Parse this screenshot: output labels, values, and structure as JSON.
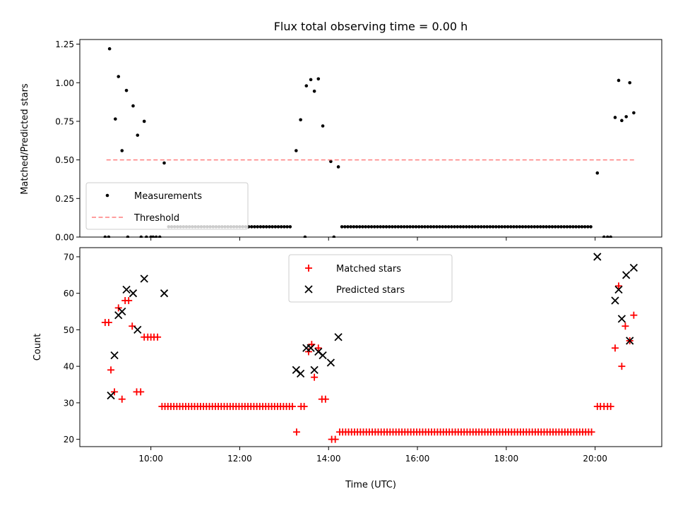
{
  "chart_data": [
    {
      "type": "scatter",
      "title": "Flux total observing time = 0.00 h",
      "xlabel": "",
      "ylabel": "Matched/Predicted stars",
      "xlim": [
        8.4,
        21.5
      ],
      "ylim": [
        0.0,
        1.28
      ],
      "yticks": [
        0.0,
        0.25,
        0.5,
        0.75,
        1.0,
        1.25
      ],
      "ytick_labels": [
        "0.00",
        "0.25",
        "0.50",
        "0.75",
        "1.00",
        "1.25"
      ],
      "xticks": [
        10,
        12,
        14,
        16,
        18,
        20
      ],
      "xtick_labels": [],
      "legend": {
        "location": "lower-left",
        "entries": [
          "Measurements",
          "Threshold"
        ]
      },
      "series": [
        {
          "name": "Measurements",
          "marker": "dot",
          "color": "#000000",
          "points": [
            [
              9.07,
              1.22
            ],
            [
              9.2,
              0.765
            ],
            [
              9.27,
              1.04
            ],
            [
              9.35,
              0.56
            ],
            [
              9.45,
              0.95
            ],
            [
              9.6,
              0.85
            ],
            [
              9.7,
              0.66
            ],
            [
              9.85,
              0.75
            ],
            [
              10.3,
              0.48
            ],
            [
              13.27,
              0.56
            ],
            [
              13.37,
              0.76
            ],
            [
              13.5,
              0.98
            ],
            [
              13.6,
              1.02
            ],
            [
              13.68,
              0.945
            ],
            [
              13.77,
              1.025
            ],
            [
              13.87,
              0.72
            ],
            [
              14.05,
              0.49
            ],
            [
              14.22,
              0.455
            ],
            [
              20.05,
              0.415
            ],
            [
              20.45,
              0.775
            ],
            [
              20.53,
              1.015
            ],
            [
              20.6,
              0.755
            ],
            [
              20.7,
              0.78
            ],
            [
              20.78,
              1.0
            ],
            [
              20.87,
              0.805
            ],
            [
              8.97,
              0.0
            ],
            [
              9.05,
              0.0
            ],
            [
              9.48,
              0.0
            ],
            [
              9.78,
              0.0
            ],
            [
              9.9,
              0.0
            ],
            [
              10.0,
              0.0
            ],
            [
              10.05,
              0.0
            ],
            [
              10.12,
              0.0
            ],
            [
              10.2,
              0.0
            ],
            [
              13.47,
              0.0
            ],
            [
              14.12,
              0.0
            ],
            [
              20.2,
              0.0
            ],
            [
              20.28,
              0.0
            ],
            [
              20.35,
              0.0
            ]
          ],
          "zero_run": [
            [
              10.4,
              13.2,
              0.0667
            ],
            [
              14.3,
              19.95,
              0.0667
            ]
          ]
        },
        {
          "name": "Threshold",
          "type": "line",
          "style": "dashed",
          "color": "#ff7f7f",
          "x": [
            9.0,
            20.9
          ],
          "y": [
            0.5,
            0.5
          ]
        }
      ]
    },
    {
      "type": "scatter",
      "title": "",
      "xlabel": "Time (UTC)",
      "ylabel": "Count",
      "xlim": [
        8.4,
        21.5
      ],
      "ylim": [
        18,
        72.5
      ],
      "yticks": [
        20,
        30,
        40,
        50,
        60,
        70
      ],
      "ytick_labels": [
        "20",
        "30",
        "40",
        "50",
        "60",
        "70"
      ],
      "xticks": [
        10,
        12,
        14,
        16,
        18,
        20
      ],
      "xtick_labels": [
        "10:00",
        "12:00",
        "14:00",
        "16:00",
        "18:00",
        "20:00"
      ],
      "legend": {
        "location": "top-center",
        "entries": [
          "Matched stars",
          "Predicted stars"
        ]
      },
      "series": [
        {
          "name": "Matched stars",
          "marker": "plus",
          "color": "#ff0000",
          "points": [
            [
              8.97,
              52
            ],
            [
              9.05,
              52
            ],
            [
              9.1,
              39
            ],
            [
              9.18,
              33
            ],
            [
              9.27,
              56
            ],
            [
              9.35,
              31
            ],
            [
              9.42,
              58
            ],
            [
              9.5,
              58
            ],
            [
              9.58,
              51
            ],
            [
              9.68,
              33
            ],
            [
              9.77,
              33
            ],
            [
              9.85,
              48
            ],
            [
              9.93,
              48
            ],
            [
              10.0,
              48
            ],
            [
              10.07,
              48
            ],
            [
              10.15,
              48
            ],
            [
              13.28,
              22
            ],
            [
              13.38,
              29
            ],
            [
              13.45,
              29
            ],
            [
              13.55,
              44
            ],
            [
              13.62,
              46
            ],
            [
              13.68,
              37
            ],
            [
              13.77,
              45
            ],
            [
              13.85,
              31
            ],
            [
              13.93,
              31
            ],
            [
              14.07,
              20
            ],
            [
              14.15,
              20
            ],
            [
              20.05,
              29
            ],
            [
              20.12,
              29
            ],
            [
              20.2,
              29
            ],
            [
              20.28,
              29
            ],
            [
              20.35,
              29
            ],
            [
              20.45,
              45
            ],
            [
              20.53,
              62
            ],
            [
              20.6,
              40
            ],
            [
              20.68,
              51
            ],
            [
              20.78,
              47
            ],
            [
              20.87,
              54
            ]
          ],
          "runs": [
            [
              10.25,
              13.2,
              29,
              0.0667
            ],
            [
              14.25,
              19.95,
              22,
              0.0667
            ]
          ]
        },
        {
          "name": "Predicted stars",
          "marker": "x",
          "color": "#000000",
          "points": [
            [
              9.1,
              32
            ],
            [
              9.18,
              43
            ],
            [
              9.27,
              54
            ],
            [
              9.35,
              55
            ],
            [
              9.45,
              61
            ],
            [
              9.6,
              60
            ],
            [
              9.7,
              50
            ],
            [
              9.85,
              64
            ],
            [
              10.3,
              60
            ],
            [
              13.27,
              39
            ],
            [
              13.37,
              38
            ],
            [
              13.5,
              45
            ],
            [
              13.6,
              45
            ],
            [
              13.68,
              39
            ],
            [
              13.77,
              44
            ],
            [
              13.87,
              43
            ],
            [
              14.05,
              41
            ],
            [
              14.22,
              48
            ],
            [
              20.05,
              70
            ],
            [
              20.45,
              58
            ],
            [
              20.53,
              61
            ],
            [
              20.6,
              53
            ],
            [
              20.7,
              65
            ],
            [
              20.78,
              47
            ],
            [
              20.87,
              67
            ]
          ]
        }
      ]
    }
  ]
}
